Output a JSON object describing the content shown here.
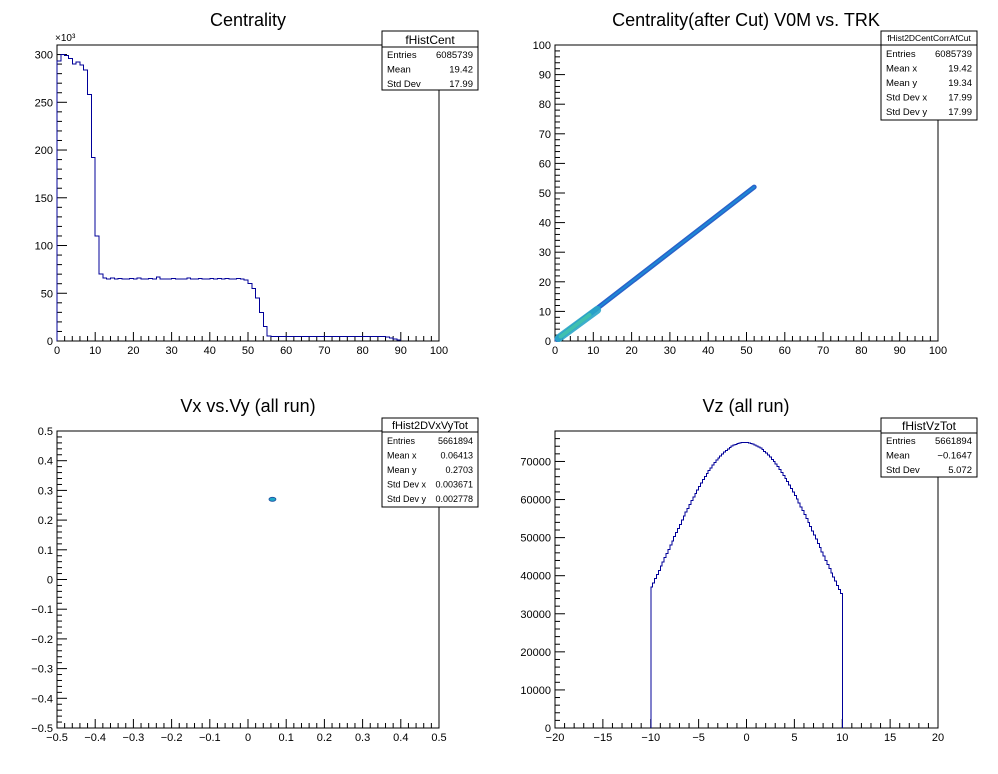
{
  "chart_data": [
    {
      "id": "cent",
      "type": "histogram",
      "title": "Centrality",
      "xlim": [
        0,
        100
      ],
      "ylim": [
        0,
        310000
      ],
      "x_ticks": [
        "0",
        "10",
        "20",
        "30",
        "40",
        "50",
        "60",
        "70",
        "80",
        "90",
        "100"
      ],
      "y_ticks": [
        "0",
        "50",
        "100",
        "150",
        "200",
        "250",
        "300"
      ],
      "y_exponent": "×10³",
      "bins": {
        "x": [
          0,
          1,
          2,
          3,
          4,
          5,
          6,
          7,
          8,
          9,
          10,
          11,
          12,
          13,
          14,
          15,
          16,
          17,
          18,
          19,
          20,
          21,
          22,
          23,
          24,
          25,
          26,
          27,
          28,
          29,
          30,
          31,
          32,
          33,
          34,
          35,
          36,
          37,
          38,
          39,
          40,
          41,
          42,
          43,
          44,
          45,
          46,
          47,
          48,
          49,
          50,
          51,
          52,
          53,
          54,
          55,
          56,
          57,
          58,
          59,
          60,
          61,
          62,
          63,
          64,
          65,
          66,
          67,
          68,
          69,
          70,
          71,
          72,
          73,
          74,
          75,
          76,
          77,
          78,
          79,
          80,
          81,
          82,
          83,
          84,
          85,
          86,
          87,
          88,
          89,
          90
        ],
        "y": [
          293000,
          300000,
          299000,
          296000,
          290000,
          292000,
          289000,
          284000,
          258000,
          192000,
          110000,
          70000,
          66000,
          65000,
          66000,
          65000,
          65500,
          65000,
          65000,
          65500,
          65000,
          66000,
          65000,
          65000,
          65500,
          65000,
          67000,
          65000,
          65000,
          65000,
          65500,
          65000,
          65000,
          65000,
          66000,
          65000,
          65000,
          65500,
          65000,
          65000,
          65500,
          65000,
          65500,
          65000,
          65500,
          65000,
          65000,
          65500,
          65000,
          64000,
          60000,
          55000,
          45000,
          30000,
          15000,
          5000,
          4500,
          4500,
          4500,
          4500,
          4500,
          4500,
          4500,
          4500,
          4500,
          4500,
          4500,
          4500,
          4500,
          4500,
          4500,
          4500,
          4500,
          4500,
          4500,
          4500,
          4500,
          4500,
          4500,
          4500,
          4500,
          4500,
          4500,
          4500,
          4500,
          4500,
          4000,
          3000,
          2000,
          1000
        ]
      },
      "stats": {
        "name": "fHistCent",
        "rows": [
          {
            "label": "Entries",
            "value": "6085739"
          },
          {
            "label": "Mean",
            "value": "19.42"
          },
          {
            "label": "Std Dev",
            "value": "17.99"
          }
        ]
      }
    },
    {
      "id": "corr",
      "type": "heatmap",
      "title": "Centrality(after Cut) V0M vs. TRK",
      "xlim": [
        0,
        100
      ],
      "ylim": [
        0,
        100
      ],
      "x_ticks": [
        "0",
        "10",
        "20",
        "30",
        "40",
        "50",
        "60",
        "70",
        "80",
        "90",
        "100"
      ],
      "y_ticks": [
        "0",
        "10",
        "20",
        "30",
        "40",
        "50",
        "60",
        "70",
        "80",
        "90",
        "100"
      ],
      "band": {
        "x_start": 0.5,
        "x_end": 52,
        "slope": 1.0
      },
      "stats": {
        "name": "fHist2DCentCorrAfCut",
        "rows": [
          {
            "label": "Entries",
            "value": "6085739"
          },
          {
            "label": "Mean x",
            "value": "19.42"
          },
          {
            "label": "Mean y",
            "value": "19.34"
          },
          {
            "label": "Std Dev x",
            "value": "17.99"
          },
          {
            "label": "Std Dev y",
            "value": "17.99"
          }
        ]
      }
    },
    {
      "id": "vxvy",
      "type": "heatmap",
      "title": "Vx vs.Vy (all run)",
      "xlim": [
        -0.5,
        0.5
      ],
      "ylim": [
        -0.5,
        0.5
      ],
      "x_ticks": [
        "−0.5",
        "−0.4",
        "−0.3",
        "−0.2",
        "−0.1",
        "0",
        "0.1",
        "0.2",
        "0.3",
        "0.4",
        "0.5"
      ],
      "y_ticks": [
        "−0.5",
        "−0.4",
        "−0.3",
        "−0.2",
        "−0.1",
        "0",
        "0.1",
        "0.2",
        "0.3",
        "0.4",
        "0.5"
      ],
      "spot": {
        "x": 0.064,
        "y": 0.27
      },
      "stats": {
        "name": "fHist2DVxVyTot",
        "rows": [
          {
            "label": "Entries",
            "value": "5661894"
          },
          {
            "label": "Mean x",
            "value": "0.06413"
          },
          {
            "label": "Mean y",
            "value": "0.2703"
          },
          {
            "label": "Std Dev x",
            "value": "0.003671"
          },
          {
            "label": "Std Dev y",
            "value": "0.002778"
          }
        ]
      }
    },
    {
      "id": "vz",
      "type": "histogram",
      "title": "Vz (all run)",
      "xlim": [
        -20,
        20
      ],
      "ylim": [
        0,
        78000
      ],
      "x_ticks": [
        "−20",
        "−15",
        "−10",
        "−5",
        "0",
        "5",
        "10",
        "15",
        "20"
      ],
      "y_ticks": [
        "0",
        "10000",
        "20000",
        "30000",
        "40000",
        "50000",
        "60000",
        "70000"
      ],
      "gauss": {
        "x_min": -10,
        "x_max": 10,
        "step": 0.2,
        "peak": 75000,
        "mean": -0.16,
        "sigma": 8.2
      },
      "stats": {
        "name": "fHistVzTot",
        "rows": [
          {
            "label": "Entries",
            "value": "5661894"
          },
          {
            "label": "Mean",
            "value": "−0.1647"
          },
          {
            "label": "Std Dev",
            "value": "5.072"
          }
        ]
      }
    }
  ]
}
